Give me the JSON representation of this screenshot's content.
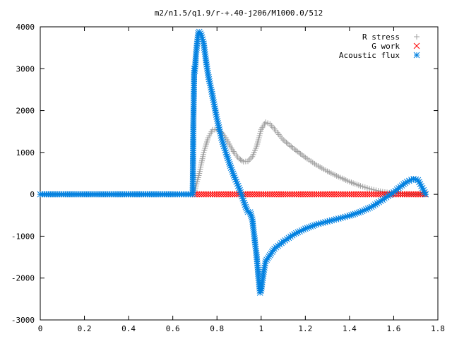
{
  "chart_data": {
    "type": "scatter",
    "title": "m2/n1.5/q1.9/r-+.40-j206/M1000.0/512",
    "xlabel": "",
    "ylabel": "",
    "xlim": [
      0,
      1.8
    ],
    "ylim": [
      -3000,
      4000
    ],
    "x_ticks": [
      "0",
      "0.2",
      "0.4",
      "0.6",
      "0.8",
      "1",
      "1.2",
      "1.4",
      "1.6",
      "1.8"
    ],
    "y_ticks": [
      "-3000",
      "-2000",
      "-1000",
      "0",
      "1000",
      "2000",
      "3000",
      "4000"
    ],
    "grid": false,
    "legend_position": "top-right",
    "series": [
      {
        "name": "R stress",
        "marker": "plus",
        "color": "#a0a0a0",
        "points": [
          [
            0.0,
            0
          ],
          [
            0.2,
            0
          ],
          [
            0.4,
            0
          ],
          [
            0.6,
            0
          ],
          [
            0.69,
            0
          ],
          [
            0.7,
            100
          ],
          [
            0.72,
            500
          ],
          [
            0.74,
            1000
          ],
          [
            0.76,
            1350
          ],
          [
            0.78,
            1540
          ],
          [
            0.8,
            1550
          ],
          [
            0.82,
            1480
          ],
          [
            0.84,
            1350
          ],
          [
            0.86,
            1150
          ],
          [
            0.88,
            980
          ],
          [
            0.9,
            850
          ],
          [
            0.92,
            780
          ],
          [
            0.94,
            790
          ],
          [
            0.96,
            900
          ],
          [
            0.98,
            1150
          ],
          [
            1.0,
            1550
          ],
          [
            1.02,
            1720
          ],
          [
            1.04,
            1680
          ],
          [
            1.06,
            1560
          ],
          [
            1.08,
            1430
          ],
          [
            1.1,
            1300
          ],
          [
            1.15,
            1080
          ],
          [
            1.2,
            880
          ],
          [
            1.25,
            700
          ],
          [
            1.3,
            550
          ],
          [
            1.35,
            420
          ],
          [
            1.4,
            300
          ],
          [
            1.45,
            200
          ],
          [
            1.5,
            120
          ],
          [
            1.55,
            60
          ],
          [
            1.6,
            25
          ],
          [
            1.65,
            10
          ],
          [
            1.7,
            0
          ],
          [
            1.74,
            0
          ]
        ]
      },
      {
        "name": "G work",
        "marker": "cross",
        "color": "#ff0000",
        "points": [
          [
            0.7,
            0
          ],
          [
            0.8,
            0
          ],
          [
            0.9,
            0
          ],
          [
            1.0,
            0
          ],
          [
            1.1,
            0
          ],
          [
            1.2,
            0
          ],
          [
            1.3,
            0
          ],
          [
            1.4,
            0
          ],
          [
            1.5,
            0
          ],
          [
            1.6,
            0
          ],
          [
            1.7,
            0
          ],
          [
            1.74,
            0
          ]
        ]
      },
      {
        "name": "Acoustic flux",
        "marker": "star",
        "color": "#0080e0",
        "points": [
          [
            0.0,
            0
          ],
          [
            0.2,
            0
          ],
          [
            0.4,
            0
          ],
          [
            0.6,
            0
          ],
          [
            0.69,
            0
          ],
          [
            0.693,
            1650
          ],
          [
            0.697,
            3000
          ],
          [
            0.7,
            2950
          ],
          [
            0.705,
            3350
          ],
          [
            0.71,
            3600
          ],
          [
            0.715,
            3850
          ],
          [
            0.72,
            3880
          ],
          [
            0.73,
            3800
          ],
          [
            0.74,
            3600
          ],
          [
            0.75,
            3200
          ],
          [
            0.76,
            2850
          ],
          [
            0.78,
            2350
          ],
          [
            0.8,
            1800
          ],
          [
            0.82,
            1350
          ],
          [
            0.84,
            1000
          ],
          [
            0.86,
            680
          ],
          [
            0.88,
            400
          ],
          [
            0.9,
            150
          ],
          [
            0.91,
            0
          ],
          [
            0.92,
            -150
          ],
          [
            0.93,
            -300
          ],
          [
            0.94,
            -420
          ],
          [
            0.95,
            -430
          ],
          [
            0.96,
            -600
          ],
          [
            0.97,
            -1050
          ],
          [
            0.98,
            -1500
          ],
          [
            0.99,
            -2100
          ],
          [
            0.995,
            -2350
          ],
          [
            1.0,
            -2300
          ],
          [
            1.01,
            -1900
          ],
          [
            1.02,
            -1600
          ],
          [
            1.04,
            -1450
          ],
          [
            1.06,
            -1300
          ],
          [
            1.1,
            -1130
          ],
          [
            1.15,
            -950
          ],
          [
            1.2,
            -820
          ],
          [
            1.25,
            -720
          ],
          [
            1.3,
            -650
          ],
          [
            1.35,
            -580
          ],
          [
            1.4,
            -510
          ],
          [
            1.45,
            -420
          ],
          [
            1.5,
            -300
          ],
          [
            1.55,
            -130
          ],
          [
            1.6,
            50
          ],
          [
            1.63,
            180
          ],
          [
            1.66,
            300
          ],
          [
            1.69,
            370
          ],
          [
            1.71,
            340
          ],
          [
            1.73,
            150
          ],
          [
            1.745,
            0
          ]
        ]
      }
    ]
  }
}
